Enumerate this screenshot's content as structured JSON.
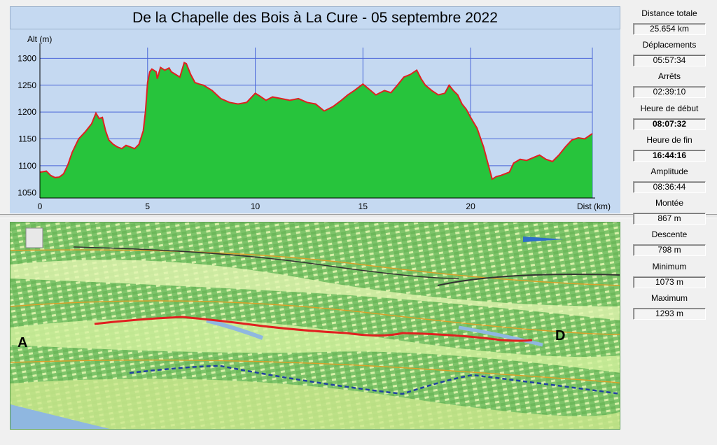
{
  "title": "De la Chapelle des Bois à La Cure - 05 septembre 2022",
  "chart_data": {
    "type": "area",
    "title": "De la Chapelle des Bois à La Cure - 05 septembre 2022",
    "ylabel": "Alt (m)",
    "xlabel": "Dist (km)",
    "xlim": [
      0,
      25.654
    ],
    "ylim": [
      1040,
      1320
    ],
    "xticks": [
      0,
      5,
      10,
      15,
      20
    ],
    "yticks": [
      1050,
      1100,
      1150,
      1200,
      1250,
      1300
    ],
    "grid": true,
    "fill_color": "#27c43c",
    "line_color": "#e02020",
    "series": [
      {
        "x": [
          0,
          0.3,
          0.5,
          0.7,
          0.9,
          1.1,
          1.3,
          1.5,
          1.8,
          2.1,
          2.4,
          2.6,
          2.75,
          2.9,
          3.05,
          3.2,
          3.4,
          3.6,
          3.8,
          4.0,
          4.2,
          4.4,
          4.6,
          4.8,
          4.9,
          5.0,
          5.1,
          5.2,
          5.4,
          5.45,
          5.6,
          5.8,
          6.0,
          6.1,
          6.3,
          6.5,
          6.7,
          6.8,
          7.0,
          7.2,
          7.4,
          7.6,
          8.0,
          8.4,
          8.8,
          9.2,
          9.6,
          10.0,
          10.2,
          10.5,
          10.8,
          11.2,
          11.6,
          12.0,
          12.4,
          12.8,
          13.2,
          13.6,
          14.0,
          14.3,
          14.6,
          15.0,
          15.3,
          15.6,
          16.0,
          16.3,
          16.6,
          16.9,
          17.2,
          17.5,
          17.7,
          17.9,
          18.2,
          18.5,
          18.8,
          19.0,
          19.2,
          19.4,
          19.6,
          19.8,
          20.0,
          20.3,
          20.6,
          20.8,
          21.0,
          21.2,
          21.4,
          21.6,
          21.8,
          22.0,
          22.3,
          22.6,
          22.9,
          23.2,
          23.5,
          23.8,
          24.1,
          24.4,
          24.7,
          25.0,
          25.3,
          25.654
        ],
        "y": [
          1088,
          1090,
          1082,
          1078,
          1079,
          1085,
          1102,
          1125,
          1150,
          1163,
          1178,
          1198,
          1188,
          1190,
          1165,
          1148,
          1140,
          1135,
          1132,
          1138,
          1135,
          1132,
          1140,
          1165,
          1200,
          1255,
          1275,
          1280,
          1275,
          1262,
          1283,
          1278,
          1282,
          1275,
          1270,
          1265,
          1292,
          1290,
          1270,
          1255,
          1252,
          1250,
          1240,
          1225,
          1218,
          1215,
          1218,
          1235,
          1230,
          1222,
          1228,
          1225,
          1222,
          1225,
          1218,
          1215,
          1202,
          1210,
          1222,
          1232,
          1240,
          1252,
          1242,
          1232,
          1240,
          1236,
          1250,
          1265,
          1270,
          1278,
          1262,
          1250,
          1240,
          1232,
          1235,
          1250,
          1240,
          1232,
          1215,
          1205,
          1190,
          1170,
          1135,
          1105,
          1075,
          1080,
          1082,
          1085,
          1088,
          1105,
          1112,
          1110,
          1115,
          1120,
          1112,
          1108,
          1120,
          1135,
          1148,
          1152,
          1150,
          1160
        ]
      }
    ]
  },
  "map": {
    "start_marker": "A",
    "end_marker": "D"
  },
  "stats": [
    {
      "label": "Distance totale",
      "value": "25.654 km",
      "bold": false
    },
    {
      "label": "Déplacements",
      "value": "05:57:34",
      "bold": false
    },
    {
      "label": "Arrêts",
      "value": "02:39:10",
      "bold": false
    },
    {
      "label": "Heure de début",
      "value": "08:07:32",
      "bold": true
    },
    {
      "label": "Heure de fin",
      "value": "16:44:16",
      "bold": true
    },
    {
      "label": "Amplitude",
      "value": "08:36:44",
      "bold": false
    },
    {
      "label": "Montée",
      "value": "867 m",
      "bold": false
    },
    {
      "label": "Descente",
      "value": "798 m",
      "bold": false
    },
    {
      "label": "Minimum",
      "value": "1073 m",
      "bold": false
    },
    {
      "label": "Maximum",
      "value": "1293 m",
      "bold": false
    }
  ]
}
